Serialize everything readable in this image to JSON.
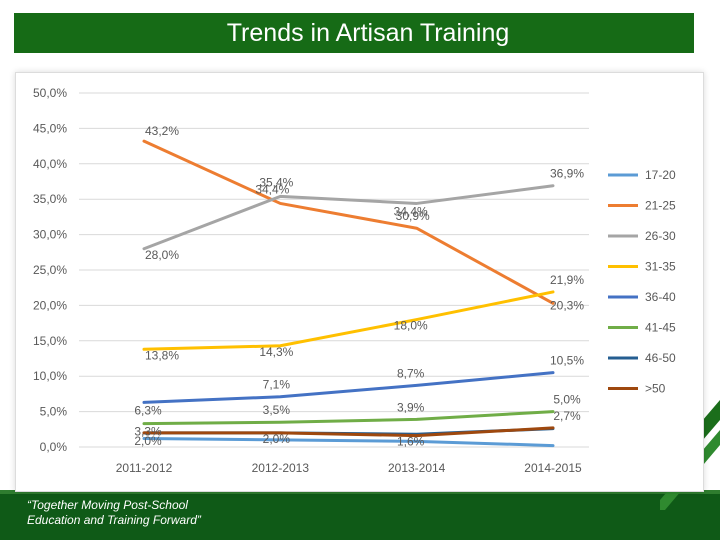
{
  "header": {
    "title": "Trends in Artisan Training"
  },
  "footer": {
    "line1": "“Together Moving Post-School",
    "line2": "Education and Training Forward”"
  },
  "colors": {
    "title_bg": "#166b16",
    "footer_bg": "#0f5a17"
  },
  "chart_data": {
    "type": "line",
    "title": "",
    "xlabel": "",
    "ylabel": "",
    "categories": [
      "2011-2012",
      "2012-2013",
      "2013-2014",
      "2014-2015"
    ],
    "ylim": [
      0,
      50
    ],
    "y_ticks": [
      "0,0%",
      "5,0%",
      "10,0%",
      "15,0%",
      "20,0%",
      "25,0%",
      "30,0%",
      "35,0%",
      "40,0%",
      "45,0%",
      "50,0%"
    ],
    "grid": true,
    "legend_position": "right",
    "series": [
      {
        "name": "17-20",
        "color": "#5b9bd5",
        "values": [
          1.2,
          1.0,
          0.8,
          0.2
        ],
        "labels": [
          "",
          "",
          "",
          ""
        ]
      },
      {
        "name": "21-25",
        "color": "#ed7d31",
        "values": [
          43.2,
          34.4,
          30.9,
          20.3
        ],
        "labels": [
          "43,2%",
          "34,4%",
          "30,9%",
          "20,3%"
        ]
      },
      {
        "name": "26-30",
        "color": "#a5a5a5",
        "values": [
          28.0,
          35.4,
          34.4,
          36.9
        ],
        "labels": [
          "28,0%",
          "35,4%",
          "34,4%",
          "36,9%"
        ]
      },
      {
        "name": "31-35",
        "color": "#ffc000",
        "values": [
          13.8,
          14.3,
          18.0,
          21.9
        ],
        "labels": [
          "13,8%",
          "14,3%",
          "18,0%",
          "21,9%"
        ]
      },
      {
        "name": "36-40",
        "color": "#4472c4",
        "values": [
          6.3,
          7.1,
          8.7,
          10.5
        ],
        "labels": [
          "6,3%",
          "7,1%",
          "8,7%",
          "10,5%"
        ]
      },
      {
        "name": "41-45",
        "color": "#70ad47",
        "values": [
          3.3,
          3.5,
          3.9,
          5.0
        ],
        "labels": [
          "3,3%",
          "3,5%",
          "3,9%",
          "5,0%"
        ]
      },
      {
        "name": "46-50",
        "color": "#255e91",
        "values": [
          2.0,
          2.0,
          1.8,
          2.6
        ],
        "labels": [
          "",
          "",
          "",
          ""
        ]
      },
      {
        "name": ">50",
        "color": "#9e480e",
        "values": [
          2.0,
          2.0,
          1.6,
          2.7
        ],
        "labels": [
          "2,0%",
          "2,0%",
          "1,6%",
          "2,7%"
        ]
      }
    ]
  }
}
